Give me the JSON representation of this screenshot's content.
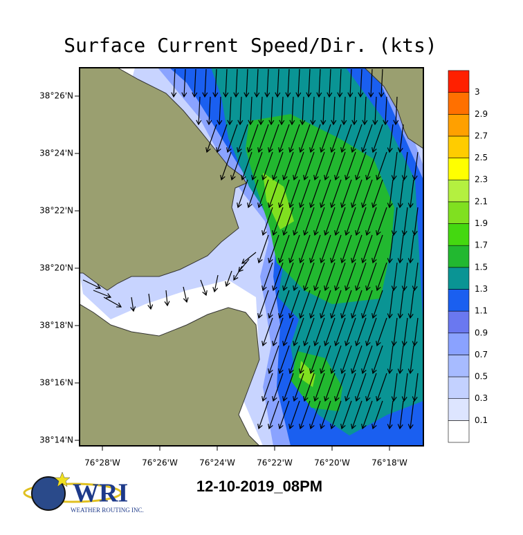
{
  "title": "Surface Current Speed/Dir. (kts)",
  "map": {
    "lat_labels": [
      "38°26'N",
      "38°24'N",
      "38°22'N",
      "38°20'N",
      "38°18'N",
      "38°16'N",
      "38°14'N"
    ],
    "lon_labels": [
      "76°28'W",
      "76°26'W",
      "76°24'W",
      "76°22'W",
      "76°20'W",
      "76°18'W"
    ]
  },
  "colorbar": {
    "labels": [
      0.1,
      0.3,
      0.5,
      0.7,
      0.9,
      1.1,
      1.3,
      1.5,
      1.7,
      1.9,
      2.1,
      2.3,
      2.5,
      2.7,
      2.9,
      3
    ],
    "colors": [
      "#ffffff",
      "#dde5ff",
      "#c3d1ff",
      "#a7bbff",
      "#8aa2ff",
      "#6a78f0",
      "#1a5ff0",
      "#0a9494",
      "#22b830",
      "#44d810",
      "#80e020",
      "#b4f040",
      "#ffff00",
      "#ffcc00",
      "#ffa000",
      "#ff7000",
      "#ff2000"
    ]
  },
  "timestamp": "12-10-2019_08PM",
  "logo": {
    "name": "WRI",
    "tagline": "WEATHER ROUTING INC."
  }
}
